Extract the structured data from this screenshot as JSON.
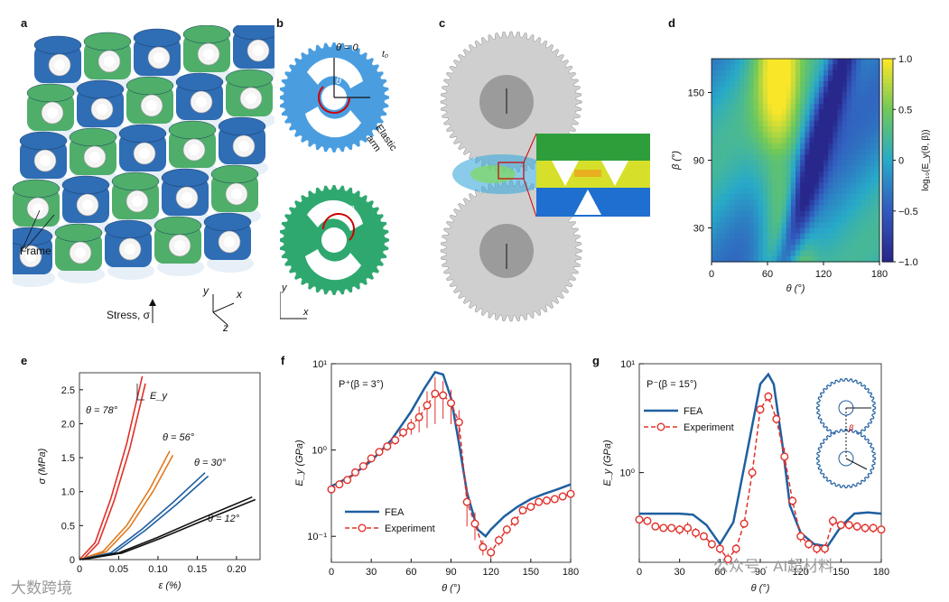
{
  "panels": {
    "a": {
      "label": "a",
      "frame_label": "Frame",
      "stress_label": "Stress, σ",
      "axes": {
        "y": "y",
        "x": "x",
        "z": "z"
      }
    },
    "b": {
      "label": "b",
      "theta_zero": "θ = 0",
      "theta": "θ",
      "t0": "t₀",
      "elastic_arm_1": "Elastic",
      "elastic_arm_2": "arm",
      "minus_theta": "−θ",
      "axes": {
        "y": "y",
        "x": "x"
      }
    },
    "c": {
      "label": "c"
    },
    "d": {
      "label": "d",
      "ylabel": "β (°)",
      "xlabel": "θ (°)",
      "colorbar_label": "log₁₀(E_y(θ, β))",
      "xticks": [
        "0",
        "60",
        "120",
        "180"
      ],
      "yticks": [
        "30",
        "90",
        "150"
      ],
      "cbar_ticks": [
        "1.0",
        "0.5",
        "0",
        "−0.5",
        "−1.0"
      ]
    },
    "e": {
      "label": "e",
      "ylabel": "σ (MPa)",
      "xlabel": "ε (%)",
      "ey_label": "E_y",
      "curve_labels": [
        "θ = 78°",
        "θ = 56°",
        "θ = 30°",
        "θ = 12°"
      ],
      "xticks": [
        "0",
        "0.05",
        "0.10",
        "0.15",
        "0.20"
      ],
      "yticks": [
        "0",
        "0.5",
        "1.0",
        "1.5",
        "2.0",
        "2.5"
      ]
    },
    "f": {
      "label": "f",
      "title": "P⁺(β = 3°)",
      "ylabel": "E_y (GPa)",
      "xlabel": "θ (°)",
      "legend_fea": "FEA",
      "legend_exp": "Experiment",
      "xticks": [
        "0",
        "30",
        "60",
        "90",
        "120",
        "150",
        "180"
      ],
      "yticks": [
        "10¹",
        "10⁰",
        "10⁻¹"
      ]
    },
    "g": {
      "label": "g",
      "title": "P⁻(β = 15°)",
      "ylabel": "E_y (GPa)",
      "xlabel": "θ (°)",
      "legend_fea": "FEA",
      "legend_exp": "Experiment",
      "inset_beta": "β",
      "xticks": [
        "0",
        "30",
        "60",
        "90",
        "120",
        "150",
        "180"
      ],
      "yticks": [
        "10¹",
        "10⁰"
      ]
    }
  },
  "watermarks": {
    "left": "大数跨境",
    "right": "公众号 · AI超材料"
  },
  "colors": {
    "blue": "#1f5fa0",
    "red": "#e0302a",
    "orange": "#e07a20",
    "gear_blue": "#4a9ee0",
    "gear_green": "#2fa870"
  },
  "chart_data": [
    {
      "panel": "e",
      "type": "line",
      "xlabel": "ε (%)",
      "ylabel": "σ (MPa)",
      "xlim": [
        0,
        0.23
      ],
      "ylim": [
        0,
        2.75
      ],
      "series": [
        {
          "name": "θ = 78°",
          "color": "#e0302a",
          "x": [
            0,
            0.02,
            0.04,
            0.06,
            0.08
          ],
          "y": [
            0,
            0.25,
            0.9,
            1.7,
            2.7
          ]
        },
        {
          "name": "θ = 56°",
          "color": "#e07a20",
          "x": [
            0,
            0.03,
            0.06,
            0.09,
            0.115
          ],
          "y": [
            0,
            0.12,
            0.5,
            1.05,
            1.6
          ]
        },
        {
          "name": "θ = 30°",
          "color": "#1f5fa0",
          "x": [
            0,
            0.04,
            0.08,
            0.12,
            0.16
          ],
          "y": [
            0,
            0.1,
            0.45,
            0.85,
            1.28
          ]
        },
        {
          "name": "θ = 12°",
          "color": "#111111",
          "x": [
            0,
            0.05,
            0.1,
            0.15,
            0.22
          ],
          "y": [
            0,
            0.1,
            0.33,
            0.58,
            0.92
          ]
        }
      ]
    },
    {
      "panel": "f",
      "type": "line",
      "yscale": "log",
      "xlabel": "θ (°)",
      "ylabel": "E_y (GPa)",
      "xlim": [
        0,
        180
      ],
      "ylim": [
        0.05,
        10
      ],
      "fea": {
        "x": [
          0,
          15,
          30,
          45,
          60,
          70,
          78,
          84,
          90,
          96,
          102,
          110,
          116,
          120,
          130,
          140,
          150,
          160,
          170,
          180
        ],
        "y": [
          0.38,
          0.5,
          0.75,
          1.3,
          2.8,
          5.2,
          8.0,
          7.5,
          4.0,
          1.2,
          0.32,
          0.12,
          0.1,
          0.12,
          0.17,
          0.22,
          0.27,
          0.31,
          0.35,
          0.4
        ]
      },
      "experiment": {
        "x": [
          0,
          6,
          12,
          18,
          24,
          30,
          36,
          42,
          48,
          54,
          60,
          66,
          72,
          78,
          84,
          90,
          96,
          102,
          108,
          114,
          120,
          126,
          132,
          138,
          144,
          150,
          156,
          162,
          168,
          174,
          180
        ],
        "y": [
          0.35,
          0.4,
          0.45,
          0.55,
          0.65,
          0.8,
          0.95,
          1.1,
          1.3,
          1.6,
          1.9,
          2.4,
          3.3,
          4.5,
          4.3,
          3.5,
          2.1,
          0.25,
          0.14,
          0.075,
          0.065,
          0.09,
          0.12,
          0.15,
          0.2,
          0.22,
          0.25,
          0.26,
          0.27,
          0.29,
          0.31
        ],
        "err": [
          0.03,
          0.03,
          0.04,
          0.05,
          0.06,
          0.08,
          0.1,
          0.12,
          0.15,
          0.2,
          0.4,
          0.8,
          1.5,
          2.5,
          2.0,
          1.5,
          0.8,
          0.12,
          0.05,
          0.015,
          0.01,
          0.012,
          0.015,
          0.02,
          0.02,
          0.02,
          0.02,
          0.02,
          0.02,
          0.02,
          0.02
        ]
      }
    },
    {
      "panel": "g",
      "type": "line",
      "yscale": "log",
      "xlabel": "θ (°)",
      "ylabel": "E_y (GPa)",
      "xlim": [
        0,
        180
      ],
      "ylim": [
        0.15,
        10
      ],
      "fea": {
        "x": [
          0,
          15,
          30,
          40,
          50,
          60,
          70,
          80,
          90,
          96,
          100,
          106,
          112,
          120,
          130,
          140,
          150,
          160,
          170,
          180
        ],
        "y": [
          0.42,
          0.42,
          0.42,
          0.41,
          0.33,
          0.22,
          0.35,
          1.5,
          6.5,
          8.0,
          6.5,
          2.0,
          0.5,
          0.28,
          0.22,
          0.21,
          0.32,
          0.42,
          0.43,
          0.42
        ]
      },
      "experiment": {
        "x": [
          0,
          6,
          12,
          18,
          24,
          30,
          36,
          42,
          48,
          54,
          60,
          66,
          72,
          78,
          84,
          90,
          96,
          102,
          108,
          114,
          120,
          126,
          132,
          138,
          144,
          150,
          156,
          162,
          168,
          174,
          180
        ],
        "y": [
          0.37,
          0.36,
          0.32,
          0.31,
          0.31,
          0.3,
          0.31,
          0.28,
          0.26,
          0.22,
          0.2,
          0.16,
          0.2,
          0.34,
          1.0,
          3.8,
          5.0,
          3.1,
          1.4,
          0.55,
          0.26,
          0.22,
          0.2,
          0.2,
          0.36,
          0.33,
          0.33,
          0.32,
          0.31,
          0.31,
          0.3
        ],
        "err": [
          0.03,
          0.03,
          0.02,
          0.02,
          0.02,
          0.03,
          0.04,
          0.03,
          0.02,
          0.02,
          0.02,
          0.02,
          0.02,
          0.03,
          0.1,
          0.3,
          0.5,
          0.3,
          0.3,
          0.05,
          0.03,
          0.02,
          0.02,
          0.02,
          0.04,
          0.03,
          0.03,
          0.03,
          0.03,
          0.03,
          0.03
        ]
      }
    },
    {
      "panel": "d",
      "type": "heatmap",
      "xlabel": "θ (°)",
      "ylabel": "β (°)",
      "xlim": [
        0,
        180
      ],
      "ylim": [
        0,
        180
      ],
      "colorbar": {
        "label": "log₁₀(E_y(θ, β))",
        "range": [
          -1.0,
          1.0
        ]
      }
    }
  ]
}
